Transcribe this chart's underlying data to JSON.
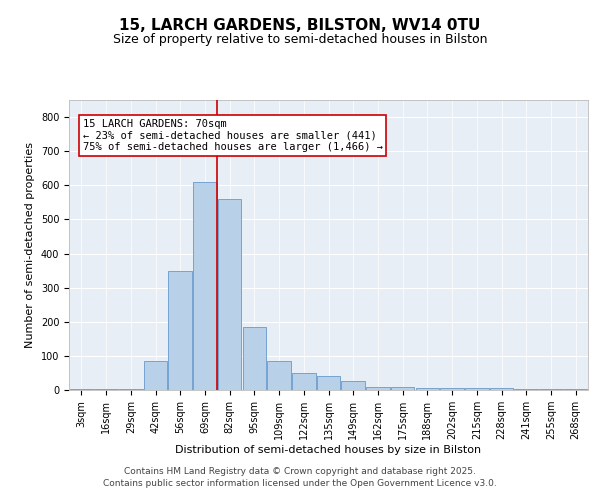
{
  "title_line1": "15, LARCH GARDENS, BILSTON, WV14 0TU",
  "title_line2": "Size of property relative to semi-detached houses in Bilston",
  "xlabel": "Distribution of semi-detached houses by size in Bilston",
  "ylabel": "Number of semi-detached properties",
  "categories": [
    "3sqm",
    "16sqm",
    "29sqm",
    "42sqm",
    "56sqm",
    "69sqm",
    "82sqm",
    "95sqm",
    "109sqm",
    "122sqm",
    "135sqm",
    "149sqm",
    "162sqm",
    "175sqm",
    "188sqm",
    "202sqm",
    "215sqm",
    "228sqm",
    "241sqm",
    "255sqm",
    "268sqm"
  ],
  "values": [
    2,
    2,
    2,
    85,
    350,
    610,
    560,
    185,
    85,
    50,
    40,
    25,
    8,
    8,
    5,
    5,
    5,
    5,
    2,
    2,
    2
  ],
  "bar_color": "#b8d0e8",
  "bar_edge_color": "#6699cc",
  "red_line_index": 5.5,
  "annotation_text": "15 LARCH GARDENS: 70sqm\n← 23% of semi-detached houses are smaller (441)\n75% of semi-detached houses are larger (1,466) →",
  "annotation_box_color": "#ffffff",
  "annotation_box_edge_color": "#cc0000",
  "ylim": [
    0,
    850
  ],
  "yticks": [
    0,
    100,
    200,
    300,
    400,
    500,
    600,
    700,
    800
  ],
  "background_color": "#e8eef5",
  "footer_line1": "Contains HM Land Registry data © Crown copyright and database right 2025.",
  "footer_line2": "Contains public sector information licensed under the Open Government Licence v3.0.",
  "grid_color": "#ffffff",
  "red_line_color": "#cc0000",
  "title_fontsize": 11,
  "subtitle_fontsize": 9,
  "axis_label_fontsize": 8,
  "tick_fontsize": 7,
  "annotation_fontsize": 7.5,
  "footer_fontsize": 6.5
}
